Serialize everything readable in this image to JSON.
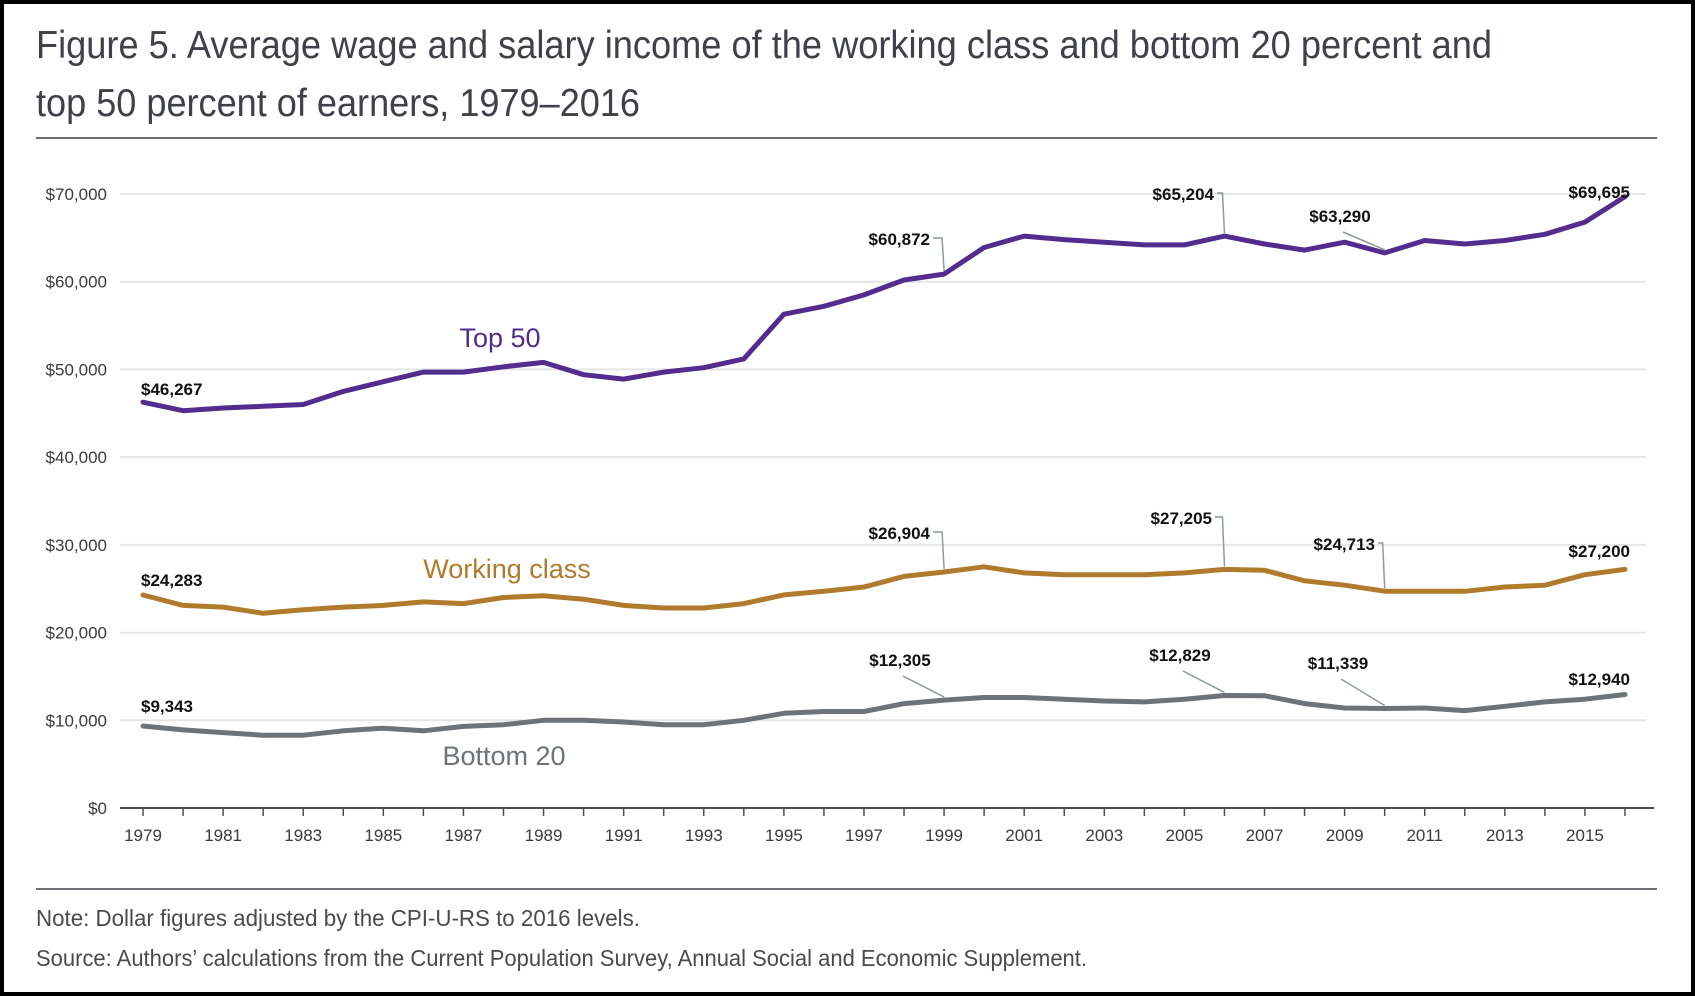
{
  "title_lines": [
    "Figure 5. Average wage and salary income of the working class and bottom 20 percent and",
    "top 50 percent of earners, 1979–2016"
  ],
  "note": "Note: Dollar figures adjusted by the CPI-U-RS to 2016 levels.",
  "source": "Source: Authors’ calculations from the Current Population Survey, Annual Social and Economic Supplement.",
  "chart_data": {
    "type": "line",
    "title": "Figure 5. Average wage and salary income of the working class and bottom 20 percent and top 50 percent of earners, 1979–2016",
    "x": [
      1979,
      1980,
      1981,
      1982,
      1983,
      1984,
      1985,
      1986,
      1987,
      1988,
      1989,
      1990,
      1991,
      1992,
      1993,
      1994,
      1995,
      1996,
      1997,
      1998,
      1999,
      2000,
      2001,
      2002,
      2003,
      2004,
      2005,
      2006,
      2007,
      2008,
      2009,
      2010,
      2011,
      2012,
      2013,
      2014,
      2015,
      2016
    ],
    "xlim": [
      1979,
      2016
    ],
    "x_tick_labels": [
      "1979",
      "1981",
      "1983",
      "1985",
      "1987",
      "1989",
      "1991",
      "1993",
      "1995",
      "1997",
      "1999",
      "2001",
      "2003",
      "2005",
      "2007",
      "2009",
      "2011",
      "2013",
      "2015"
    ],
    "ylim": [
      0,
      70000
    ],
    "y_ticks": [
      0,
      10000,
      20000,
      30000,
      40000,
      50000,
      60000,
      70000
    ],
    "y_tick_labels": [
      "$0",
      "$10,000",
      "$20,000",
      "$30,000",
      "$40,000",
      "$50,000",
      "$60,000",
      "$70,000"
    ],
    "grid": "horizontal",
    "series": [
      {
        "name": "Top 50",
        "color": "#532d8e",
        "values": [
          46267,
          45300,
          45600,
          45800,
          46000,
          47500,
          48600,
          49700,
          49700,
          50300,
          50800,
          49400,
          48900,
          49700,
          50200,
          51200,
          56300,
          57200,
          58500,
          60200,
          60872,
          63900,
          65200,
          64800,
          64500,
          64200,
          64200,
          65204,
          64300,
          63600,
          64500,
          63290,
          64700,
          64300,
          64700,
          65400,
          66800,
          69695
        ]
      },
      {
        "name": "Working class",
        "color": "#b07b2c",
        "values": [
          24283,
          23100,
          22900,
          22200,
          22600,
          22900,
          23100,
          23500,
          23300,
          24000,
          24200,
          23800,
          23100,
          22800,
          22800,
          23300,
          24300,
          24700,
          25200,
          26400,
          26904,
          27500,
          26800,
          26600,
          26600,
          26600,
          26800,
          27205,
          27100,
          25900,
          25400,
          24713,
          24700,
          24700,
          25200,
          25400,
          26600,
          27200
        ]
      },
      {
        "name": "Bottom 20",
        "color": "#6d7377",
        "values": [
          9343,
          8900,
          8600,
          8300,
          8300,
          8800,
          9100,
          8800,
          9300,
          9500,
          10000,
          10000,
          9800,
          9500,
          9500,
          10000,
          10800,
          11000,
          11000,
          11900,
          12305,
          12600,
          12600,
          12400,
          12200,
          12100,
          12400,
          12829,
          12800,
          11900,
          11400,
          11339,
          11400,
          11100,
          11600,
          12100,
          12400,
          12940
        ]
      }
    ],
    "annotations": [
      {
        "series": 0,
        "year": 1979,
        "label": "$46,267"
      },
      {
        "series": 0,
        "year": 1999,
        "label": "$60,872"
      },
      {
        "series": 0,
        "year": 2006,
        "label": "$65,204"
      },
      {
        "series": 0,
        "year": 2010,
        "label": "$63,290"
      },
      {
        "series": 0,
        "year": 2016,
        "label": "$69,695"
      },
      {
        "series": 1,
        "year": 1979,
        "label": "$24,283"
      },
      {
        "series": 1,
        "year": 1999,
        "label": "$26,904"
      },
      {
        "series": 1,
        "year": 2006,
        "label": "$27,205"
      },
      {
        "series": 1,
        "year": 2010,
        "label": "$24,713"
      },
      {
        "series": 1,
        "year": 2016,
        "label": "$27,200"
      },
      {
        "series": 2,
        "year": 1979,
        "label": "$9,343"
      },
      {
        "series": 2,
        "year": 1999,
        "label": "$12,305"
      },
      {
        "series": 2,
        "year": 2006,
        "label": "$12,829"
      },
      {
        "series": 2,
        "year": 2010,
        "label": "$11,339"
      },
      {
        "series": 2,
        "year": 2016,
        "label": "$12,940"
      }
    ]
  }
}
